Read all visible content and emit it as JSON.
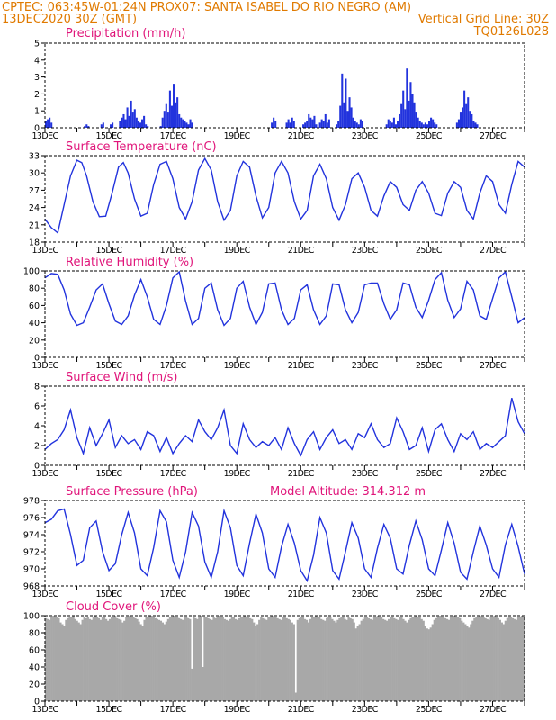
{
  "header": {
    "line1_left": "CPTEC:   063:45W-01:24N   PROX07: SANTA ISABEL DO RIO NEGRO (AM)",
    "line2_left": "13DEC2020 30Z (GMT)",
    "line2_right": "Vertical Grid Line: 30Z",
    "line3_right": "TQ0126L028"
  },
  "colors": {
    "header": "#e07a00",
    "title": "#e0157a",
    "line": "#2233dd",
    "cloud": "#a8a8a8"
  },
  "x_labels": [
    "13DEC",
    "15DEC",
    "17DEC",
    "19DEC",
    "21DEC",
    "23DEC",
    "25DEC",
    "27DEC"
  ],
  "chart_data": [
    {
      "type": "bar",
      "title": "Precipitation (mm/h)",
      "ylim": [
        0,
        5
      ],
      "yticks": [
        "0",
        "1",
        "2",
        "3",
        "4",
        "5"
      ],
      "x_start_day": 13,
      "x_end_day": 28,
      "values": [
        0.4,
        0.5,
        0.6,
        0.3,
        0,
        0,
        0,
        0,
        0,
        0,
        0,
        0,
        0,
        0,
        0,
        0,
        0,
        0,
        0,
        0,
        0,
        0.1,
        0.2,
        0.1,
        0,
        0,
        0,
        0,
        0,
        0,
        0.2,
        0.3,
        0,
        0,
        0,
        0.2,
        0.3,
        0,
        0,
        0,
        0.4,
        0.6,
        0.8,
        0.5,
        1.2,
        0.7,
        1.6,
        0.9,
        1.1,
        0.6,
        0.4,
        0.3,
        0.5,
        0.7,
        0.2,
        0.1,
        0,
        0,
        0,
        0,
        0,
        0,
        0.1,
        0.6,
        1.0,
        1.4,
        0.9,
        2.2,
        1.3,
        2.6,
        1.5,
        1.8,
        0.8,
        0.6,
        0.5,
        0.4,
        0.3,
        0.2,
        0.5,
        0.3,
        0,
        0,
        0,
        0,
        0,
        0,
        0,
        0,
        0,
        0,
        0,
        0,
        0,
        0,
        0,
        0,
        0,
        0,
        0,
        0,
        0,
        0,
        0,
        0,
        0,
        0,
        0,
        0,
        0,
        0,
        0,
        0,
        0,
        0,
        0,
        0,
        0,
        0,
        0,
        0,
        0,
        0,
        0.3,
        0.6,
        0.4,
        0,
        0,
        0,
        0,
        0,
        0.3,
        0.5,
        0.3,
        0.6,
        0.4,
        0,
        0,
        0,
        0,
        0.2,
        0.3,
        0.4,
        0.8,
        0.6,
        0.5,
        0.7,
        0.2,
        0,
        0.3,
        0.5,
        0.4,
        0.8,
        0.3,
        0.5,
        0,
        0,
        0,
        0.2,
        0.4,
        1.3,
        3.2,
        1.5,
        2.9,
        1.0,
        1.8,
        1.2,
        0.6,
        0.4,
        0.3,
        0.2,
        0.5,
        0.4,
        0,
        0,
        0,
        0,
        0,
        0,
        0,
        0,
        0,
        0,
        0,
        0,
        0.2,
        0.5,
        0.4,
        0.3,
        0.6,
        0.2,
        0.4,
        0.8,
        1.4,
        2.2,
        1.1,
        3.5,
        1.6,
        2.7,
        2.0,
        1.5,
        0.9,
        0.6,
        0.4,
        0.3,
        0.2,
        0.3,
        0.2,
        0.4,
        0.6,
        0.5,
        0.3,
        0.2,
        0,
        0,
        0,
        0,
        0,
        0,
        0,
        0,
        0,
        0,
        0.3,
        0.5,
        0.9,
        1.2,
        2.2,
        1.4,
        1.8,
        1.0,
        0.8,
        0.4,
        0.3,
        0.2,
        0,
        0,
        0,
        0,
        0,
        0,
        0,
        0,
        0,
        0,
        0,
        0,
        0,
        0,
        0,
        0,
        0,
        0,
        0,
        0,
        0,
        0,
        0,
        0,
        0
      ]
    },
    {
      "type": "line",
      "title": "Surface Temperature (nC)",
      "ylim": [
        18,
        33
      ],
      "yticks": [
        "18",
        "21",
        "24",
        "27",
        "30",
        "33"
      ],
      "x_start_day": 13,
      "x_end_day": 28,
      "x": [
        13.0,
        13.2,
        13.4,
        13.6,
        13.8,
        14.0,
        14.15,
        14.3,
        14.5,
        14.7,
        14.9,
        15.1,
        15.3,
        15.45,
        15.6,
        15.8,
        16.0,
        16.2,
        16.4,
        16.6,
        16.8,
        17.0,
        17.2,
        17.4,
        17.6,
        17.8,
        18.0,
        18.2,
        18.4,
        18.6,
        18.8,
        19.0,
        19.2,
        19.4,
        19.6,
        19.8,
        20.0,
        20.2,
        20.4,
        20.6,
        20.8,
        21.0,
        21.2,
        21.4,
        21.6,
        21.8,
        22.0,
        22.2,
        22.4,
        22.6,
        22.8,
        23.0,
        23.2,
        23.4,
        23.6,
        23.8,
        24.0,
        24.2,
        24.4,
        24.6,
        24.8,
        25.0,
        25.2,
        25.4,
        25.6,
        25.8,
        26.0,
        26.2,
        26.4,
        26.6,
        26.8,
        27.0,
        27.2,
        27.4,
        27.6,
        27.8,
        28.0
      ],
      "y": [
        22.0,
        20.5,
        19.6,
        24.5,
        29.5,
        32.2,
        31.8,
        29.5,
        25.0,
        22.4,
        22.5,
        26.5,
        31.0,
        31.8,
        30.0,
        25.5,
        22.5,
        23.0,
        28.0,
        31.5,
        32.0,
        29.0,
        24.0,
        22.0,
        25.0,
        30.5,
        32.5,
        30.5,
        25.0,
        21.8,
        23.5,
        29.5,
        32.0,
        31.0,
        26.0,
        22.2,
        24.0,
        30.0,
        32.0,
        30.0,
        25.0,
        22.0,
        23.5,
        29.5,
        31.5,
        29.0,
        24.0,
        21.8,
        24.5,
        29.0,
        30.0,
        27.5,
        23.5,
        22.5,
        26.0,
        28.5,
        27.5,
        24.5,
        23.5,
        27.0,
        28.5,
        26.5,
        23.0,
        22.6,
        26.5,
        28.5,
        27.5,
        23.5,
        22.0,
        26.5,
        29.5,
        28.5,
        24.5,
        23.0,
        28.0,
        32.0,
        31.0
      ]
    },
    {
      "type": "line",
      "title": "Relative Humidity (%)",
      "ylim": [
        0,
        100
      ],
      "yticks": [
        "0",
        "20",
        "40",
        "60",
        "80",
        "100"
      ],
      "x_start_day": 13,
      "x_end_day": 28,
      "x": [
        13.0,
        13.2,
        13.4,
        13.6,
        13.8,
        14.0,
        14.2,
        14.4,
        14.6,
        14.8,
        15.0,
        15.2,
        15.4,
        15.6,
        15.8,
        16.0,
        16.2,
        16.4,
        16.6,
        16.8,
        17.0,
        17.2,
        17.4,
        17.6,
        17.8,
        18.0,
        18.2,
        18.4,
        18.6,
        18.8,
        19.0,
        19.2,
        19.4,
        19.6,
        19.8,
        20.0,
        20.2,
        20.4,
        20.6,
        20.8,
        21.0,
        21.2,
        21.4,
        21.6,
        21.8,
        22.0,
        22.2,
        22.4,
        22.6,
        22.8,
        23.0,
        23.2,
        23.4,
        23.6,
        23.8,
        24.0,
        24.2,
        24.4,
        24.6,
        24.8,
        25.0,
        25.2,
        25.4,
        25.6,
        25.8,
        26.0,
        26.2,
        26.4,
        26.6,
        26.8,
        27.0,
        27.2,
        27.4,
        27.6,
        27.8,
        28.0
      ],
      "y": [
        92,
        97,
        96,
        78,
        50,
        37,
        40,
        58,
        78,
        85,
        62,
        42,
        38,
        48,
        72,
        90,
        70,
        44,
        38,
        60,
        92,
        99,
        65,
        38,
        45,
        80,
        86,
        55,
        37,
        45,
        80,
        88,
        58,
        38,
        52,
        85,
        86,
        55,
        38,
        45,
        78,
        84,
        55,
        38,
        48,
        85,
        84,
        55,
        40,
        52,
        84,
        86,
        86,
        62,
        44,
        55,
        86,
        84,
        58,
        46,
        66,
        90,
        98,
        66,
        46,
        56,
        88,
        78,
        48,
        44,
        68,
        92,
        99,
        70,
        40,
        46
      ]
    },
    {
      "type": "line",
      "title": "Surface Wind (m/s)",
      "ylim": [
        0,
        8
      ],
      "yticks": [
        "0",
        "2",
        "4",
        "6",
        "8"
      ],
      "x_start_day": 13,
      "x_end_day": 28,
      "x": [
        13.0,
        13.2,
        13.4,
        13.6,
        13.8,
        14.0,
        14.2,
        14.4,
        14.6,
        14.8,
        15.0,
        15.2,
        15.4,
        15.6,
        15.8,
        16.0,
        16.2,
        16.4,
        16.6,
        16.8,
        17.0,
        17.2,
        17.4,
        17.6,
        17.8,
        18.0,
        18.2,
        18.4,
        18.6,
        18.8,
        19.0,
        19.2,
        19.4,
        19.6,
        19.8,
        20.0,
        20.2,
        20.4,
        20.6,
        20.8,
        21.0,
        21.2,
        21.4,
        21.6,
        21.8,
        22.0,
        22.2,
        22.4,
        22.6,
        22.8,
        23.0,
        23.2,
        23.4,
        23.6,
        23.8,
        24.0,
        24.2,
        24.4,
        24.6,
        24.8,
        25.0,
        25.2,
        25.4,
        25.6,
        25.8,
        26.0,
        26.2,
        26.4,
        26.6,
        26.8,
        27.0,
        27.2,
        27.4,
        27.6,
        27.8,
        28.0
      ],
      "y": [
        1.6,
        2.2,
        2.6,
        3.6,
        5.6,
        2.8,
        1.2,
        3.8,
        2.0,
        3.2,
        4.6,
        1.8,
        3.0,
        2.2,
        2.6,
        1.6,
        3.4,
        3.0,
        1.4,
        2.8,
        1.2,
        2.2,
        3.0,
        2.4,
        4.6,
        3.4,
        2.6,
        3.8,
        5.6,
        2.0,
        1.2,
        4.2,
        2.6,
        1.8,
        2.4,
        2.0,
        2.8,
        1.6,
        3.8,
        2.2,
        1.0,
        2.6,
        3.4,
        1.6,
        2.8,
        3.6,
        2.2,
        2.6,
        1.6,
        3.2,
        2.8,
        4.2,
        2.6,
        1.8,
        2.2,
        4.8,
        3.4,
        1.6,
        2.0,
        3.8,
        1.4,
        3.6,
        4.2,
        2.6,
        1.4,
        3.2,
        2.6,
        3.4,
        1.6,
        2.2,
        1.8,
        2.4,
        3.0,
        6.8,
        4.4,
        3.2
      ]
    },
    {
      "type": "line",
      "title": "Surface Pressure (hPa)",
      "annotation": "Model Altitude: 314.312 m",
      "ylim": [
        968,
        978
      ],
      "yticks": [
        "968",
        "970",
        "972",
        "974",
        "976",
        "978"
      ],
      "x_start_day": 13,
      "x_end_day": 28,
      "x": [
        13.0,
        13.2,
        13.4,
        13.6,
        13.8,
        14.0,
        14.2,
        14.4,
        14.6,
        14.8,
        15.0,
        15.2,
        15.4,
        15.6,
        15.8,
        16.0,
        16.2,
        16.4,
        16.6,
        16.8,
        17.0,
        17.2,
        17.4,
        17.6,
        17.8,
        18.0,
        18.2,
        18.4,
        18.6,
        18.8,
        19.0,
        19.2,
        19.4,
        19.6,
        19.8,
        20.0,
        20.2,
        20.4,
        20.6,
        20.8,
        21.0,
        21.2,
        21.4,
        21.6,
        21.8,
        22.0,
        22.2,
        22.4,
        22.6,
        22.8,
        23.0,
        23.2,
        23.4,
        23.6,
        23.8,
        24.0,
        24.2,
        24.4,
        24.6,
        24.8,
        25.0,
        25.2,
        25.4,
        25.6,
        25.8,
        26.0,
        26.2,
        26.4,
        26.6,
        26.8,
        27.0,
        27.2,
        27.4,
        27.6,
        27.8,
        28.0
      ],
      "y": [
        975.4,
        975.8,
        976.8,
        977.0,
        974.0,
        970.4,
        971.0,
        974.8,
        975.6,
        972.0,
        969.8,
        970.6,
        974.0,
        976.6,
        974.2,
        970.0,
        969.2,
        972.5,
        976.8,
        975.5,
        971.0,
        969.0,
        972.0,
        976.6,
        975.0,
        970.8,
        969.0,
        972.0,
        976.8,
        974.8,
        970.4,
        969.2,
        973.0,
        976.4,
        974.2,
        970.0,
        969.0,
        972.6,
        975.2,
        973.0,
        969.8,
        968.6,
        971.6,
        976.0,
        974.2,
        969.8,
        968.8,
        972.0,
        975.4,
        973.6,
        970.0,
        969.0,
        972.4,
        975.2,
        973.6,
        970.0,
        969.4,
        972.8,
        975.6,
        973.4,
        970.0,
        969.2,
        972.2,
        975.4,
        973.0,
        969.6,
        968.8,
        972.0,
        975.0,
        972.8,
        970.0,
        969.0,
        972.8,
        975.2,
        972.6,
        969.4
      ]
    },
    {
      "type": "bar",
      "title": "Cloud Cover (%)",
      "ylim": [
        0,
        100
      ],
      "yticks": [
        "0",
        "20",
        "40",
        "60",
        "80",
        "100"
      ],
      "x_start_day": 13,
      "x_end_day": 28,
      "values": [
        97,
        96,
        95,
        98,
        100,
        99,
        98,
        97,
        92,
        90,
        88,
        95,
        97,
        98,
        99,
        100,
        96,
        94,
        92,
        90,
        95,
        98,
        97,
        99,
        96,
        95,
        98,
        100,
        99,
        97,
        95,
        98,
        99,
        96,
        94,
        96,
        98,
        99,
        100,
        97,
        96,
        95,
        92,
        94,
        98,
        99,
        100,
        99,
        98,
        97,
        96,
        93,
        90,
        88,
        95,
        98,
        99,
        100,
        100,
        99,
        97,
        96,
        95,
        94,
        92,
        90,
        93,
        96,
        98,
        99,
        100,
        99,
        98,
        97,
        96,
        95,
        98,
        99,
        97,
        96,
        38,
        98,
        97,
        96,
        99,
        100,
        40,
        99,
        98,
        97,
        96,
        95,
        98,
        97,
        99,
        100,
        99,
        98,
        96,
        95,
        94,
        96,
        98,
        99,
        96,
        95,
        97,
        98,
        99,
        100,
        99,
        98,
        97,
        96,
        92,
        88,
        90,
        95,
        98,
        97,
        96,
        95,
        98,
        99,
        100,
        99,
        98,
        97,
        96,
        95,
        98,
        99,
        97,
        96,
        95,
        92,
        90,
        10,
        95,
        97,
        98,
        99,
        96,
        95,
        92,
        96,
        98,
        99,
        100,
        99,
        98,
        96,
        95,
        94,
        97,
        98,
        99,
        96,
        94,
        92,
        95,
        97,
        98,
        99,
        96,
        95,
        98,
        97,
        96,
        92,
        85,
        88,
        90,
        94,
        96,
        98,
        99,
        97,
        96,
        95,
        98,
        99,
        100,
        99,
        98,
        96,
        95,
        94,
        96,
        98,
        99,
        97,
        96,
        95,
        98,
        99,
        96,
        94,
        92,
        95,
        97,
        98,
        99,
        100,
        99,
        98,
        96,
        94,
        88,
        85,
        84,
        86,
        90,
        95,
        97,
        99,
        100,
        99,
        98,
        97,
        96,
        95,
        98,
        99,
        100,
        99,
        98,
        97,
        94,
        92,
        90,
        88,
        86,
        90,
        94,
        97,
        98,
        99,
        100,
        99,
        98,
        97,
        96,
        95,
        98,
        99,
        100,
        99,
        97,
        95,
        92,
        90,
        94,
        97,
        99,
        98,
        97,
        96,
        95,
        98,
        99,
        100,
        99
      ]
    }
  ]
}
